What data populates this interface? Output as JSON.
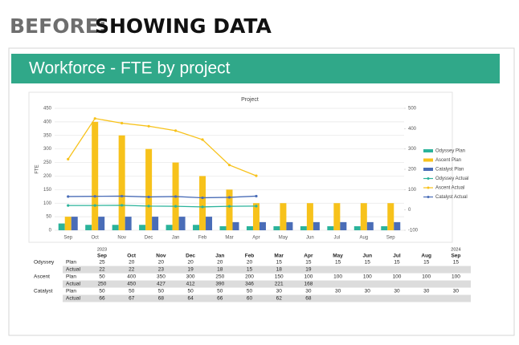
{
  "header": {
    "before": "BEFORE:",
    "topic": "SHOWING DATA"
  },
  "slide": {
    "title": "Workforce - FTE by project"
  },
  "chart_data": {
    "type": "bar",
    "title": "Project",
    "y_label": "FTE",
    "categories": [
      "Sep",
      "Oct",
      "Nov",
      "Dec",
      "Jan",
      "Feb",
      "Mar",
      "Apr",
      "May",
      "Jun",
      "Jul",
      "Aug",
      "Sep"
    ],
    "ylim": [
      0,
      450
    ],
    "yticks": [
      0,
      50,
      100,
      150,
      200,
      250,
      300,
      350,
      400,
      450
    ],
    "y2lim": [
      -100,
      500
    ],
    "y2ticks": [
      -100,
      0,
      100,
      200,
      300,
      400,
      500
    ],
    "grid": true,
    "legend": "right",
    "series": [
      {
        "name": "Odyssey Plan",
        "type": "bar",
        "color": "#2bb39b",
        "values": [
          25,
          20,
          20,
          20,
          20,
          20,
          15,
          15,
          15,
          15,
          15,
          15,
          15
        ]
      },
      {
        "name": "Ascent Plan",
        "type": "bar",
        "color": "#f7c21b",
        "values": [
          50,
          400,
          350,
          300,
          250,
          200,
          150,
          100,
          100,
          100,
          100,
          100,
          100
        ]
      },
      {
        "name": "Catalyst Plan",
        "type": "bar",
        "color": "#4a6db7",
        "values": [
          50,
          50,
          50,
          50,
          50,
          50,
          30,
          30,
          30,
          30,
          30,
          30,
          30
        ]
      },
      {
        "name": "Odyssey Actual",
        "type": "line",
        "axis": "y2",
        "color": "#2bb39b",
        "values": [
          22,
          22,
          23,
          19,
          18,
          15,
          18,
          19,
          null,
          null,
          null,
          null,
          null
        ]
      },
      {
        "name": "Ascent Actual",
        "type": "line",
        "axis": "y2",
        "color": "#f7c21b",
        "values": [
          250,
          450,
          427,
          412,
          390,
          346,
          221,
          168,
          null,
          null,
          null,
          null,
          null
        ]
      },
      {
        "name": "Catalyst Actual",
        "type": "line",
        "axis": "y2",
        "color": "#4a6db7",
        "values": [
          66,
          67,
          68,
          64,
          66,
          60,
          62,
          68,
          null,
          null,
          null,
          null,
          null
        ]
      }
    ]
  },
  "table": {
    "years": [
      "2023",
      "2024"
    ],
    "projects": [
      "Odyssey",
      "Ascent",
      "Catalyst"
    ],
    "kinds": [
      "Plan",
      "Actual"
    ]
  }
}
